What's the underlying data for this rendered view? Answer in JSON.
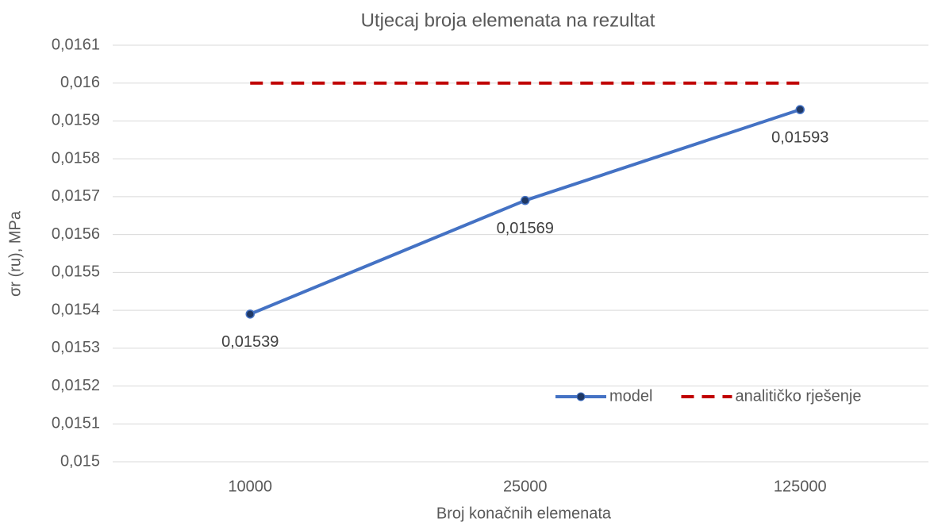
{
  "chart_data": {
    "type": "line",
    "title": "Utjecaj broja elemenata na rezultat",
    "x_label": "Broj konačnih elemenata",
    "y_label": "σr (ru), MPa",
    "categories": [
      "10000",
      "25000",
      "125000"
    ],
    "series": [
      {
        "name": "model",
        "color": "#4472c4",
        "style": "solid",
        "markers": true,
        "values": [
          0.01539,
          0.01569,
          0.01593
        ],
        "value_labels": [
          "0,01539",
          "0,01569",
          "0,01593"
        ]
      },
      {
        "name": "analitičko rješenje",
        "color": "#c00000",
        "style": "dashed",
        "markers": false,
        "values": [
          0.016,
          0.016,
          0.016
        ]
      }
    ],
    "ylim": [
      0.015,
      0.0161
    ],
    "yticks": [
      {
        "value": 0.015,
        "label": "0,015"
      },
      {
        "value": 0.0151,
        "label": "0,0151"
      },
      {
        "value": 0.0152,
        "label": "0,0152"
      },
      {
        "value": 0.0153,
        "label": "0,0153"
      },
      {
        "value": 0.0154,
        "label": "0,0154"
      },
      {
        "value": 0.0155,
        "label": "0,0155"
      },
      {
        "value": 0.0156,
        "label": "0,0156"
      },
      {
        "value": 0.0157,
        "label": "0,0157"
      },
      {
        "value": 0.0158,
        "label": "0,0158"
      },
      {
        "value": 0.0159,
        "label": "0,0159"
      },
      {
        "value": 0.016,
        "label": "0,016"
      },
      {
        "value": 0.0161,
        "label": "0,0161"
      }
    ],
    "grid": true,
    "legend": "lower right"
  }
}
